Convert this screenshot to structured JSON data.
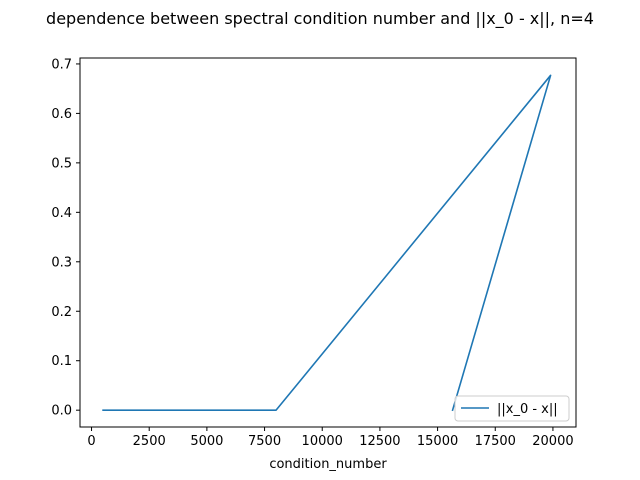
{
  "chart_data": {
    "type": "line",
    "title": "dependence between spectral condition number and ||x_0 - x||, n=4",
    "xlabel": "condition_number",
    "ylabel": "",
    "xlim": [
      -500,
      21000
    ],
    "ylim": [
      -0.034,
      0.712
    ],
    "xticks": [
      0,
      2500,
      5000,
      7500,
      10000,
      12500,
      15000,
      17500,
      20000
    ],
    "xtick_labels": [
      "0",
      "2500",
      "5000",
      "7500",
      "10000",
      "12500",
      "15000",
      "17500",
      "20000"
    ],
    "yticks": [
      0.0,
      0.1,
      0.2,
      0.3,
      0.4,
      0.5,
      0.6,
      0.7
    ],
    "ytick_labels": [
      "0.0",
      "0.1",
      "0.2",
      "0.3",
      "0.4",
      "0.5",
      "0.6",
      "0.7"
    ],
    "grid": false,
    "legend_position": "lower right",
    "series": [
      {
        "name": "||x_0 - x||",
        "color": "#1f77b4",
        "x": [
          500,
          8000,
          19900,
          15650
        ],
        "y": [
          0.0,
          0.0,
          0.677,
          0.0
        ]
      }
    ]
  }
}
